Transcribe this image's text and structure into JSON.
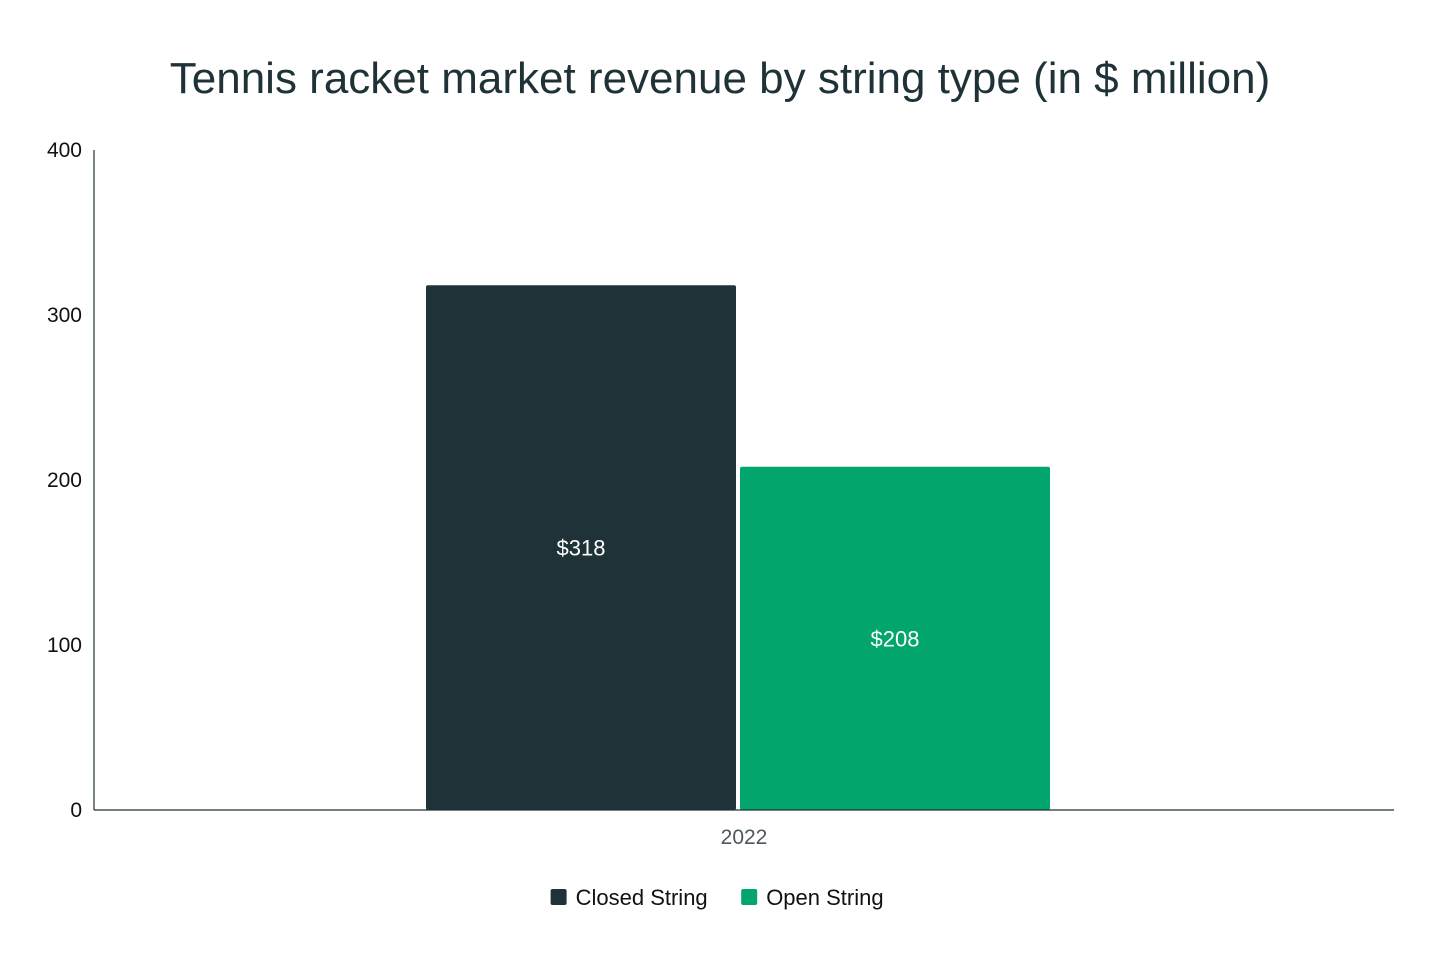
{
  "chart_data": {
    "type": "bar",
    "title": "Tennis racket market revenue by string type (in $ million)",
    "xlabel": "",
    "ylabel": "",
    "categories": [
      "2022"
    ],
    "ylim": [
      0,
      400
    ],
    "yticks": [
      0,
      100,
      200,
      300,
      400
    ],
    "grid": false,
    "legend_position": "bottom",
    "series": [
      {
        "name": "Closed String",
        "values": [
          318
        ],
        "labels": [
          "$318"
        ],
        "color": "#1e3238"
      },
      {
        "name": "Open String",
        "values": [
          208
        ],
        "labels": [
          "$208"
        ],
        "color": "#02a56b"
      }
    ]
  },
  "colors": {
    "title": "#1e3238",
    "axis": "#1e3238",
    "category_label": "#4a5a60"
  }
}
